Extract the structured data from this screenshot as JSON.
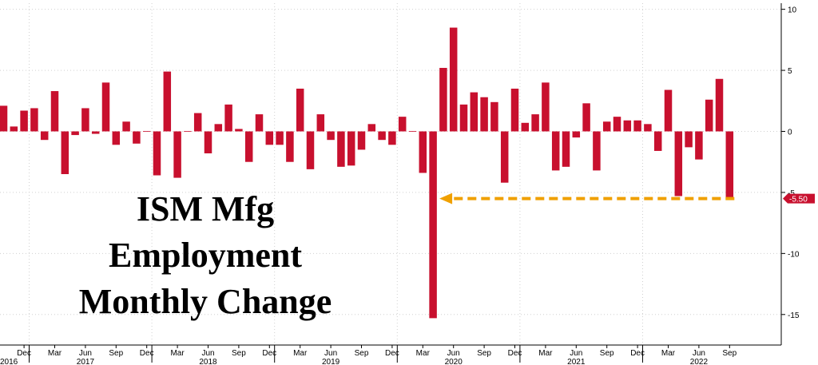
{
  "chart_data": {
    "type": "bar",
    "title_lines": [
      "ISM Mfg",
      "Employment",
      "Monthly Change"
    ],
    "xlabel": "",
    "ylabel": "",
    "ylim": [
      -17.5,
      10.5
    ],
    "y_ticks": [
      10,
      5,
      0,
      -5,
      -10,
      -15
    ],
    "grid": true,
    "x": [
      "2016-10",
      "2016-11",
      "2016-12",
      "2017-01",
      "2017-02",
      "2017-03",
      "2017-04",
      "2017-05",
      "2017-06",
      "2017-07",
      "2017-08",
      "2017-09",
      "2017-10",
      "2017-11",
      "2017-12",
      "2018-01",
      "2018-02",
      "2018-03",
      "2018-04",
      "2018-05",
      "2018-06",
      "2018-07",
      "2018-08",
      "2018-09",
      "2018-10",
      "2018-11",
      "2018-12",
      "2019-01",
      "2019-02",
      "2019-03",
      "2019-04",
      "2019-05",
      "2019-06",
      "2019-07",
      "2019-08",
      "2019-09",
      "2019-10",
      "2019-11",
      "2019-12",
      "2020-01",
      "2020-02",
      "2020-03",
      "2020-04",
      "2020-05",
      "2020-06",
      "2020-07",
      "2020-08",
      "2020-09",
      "2020-10",
      "2020-11",
      "2020-12",
      "2021-01",
      "2021-02",
      "2021-03",
      "2021-04",
      "2021-05",
      "2021-06",
      "2021-07",
      "2021-08",
      "2021-09",
      "2021-10",
      "2021-11",
      "2021-12",
      "2022-01",
      "2022-02",
      "2022-03",
      "2022-04",
      "2022-05",
      "2022-06",
      "2022-07",
      "2022-08",
      "2022-09"
    ],
    "series": [
      {
        "color": "#c8102e",
        "values": [
          2.1,
          0.4,
          1.7,
          1.9,
          -0.7,
          3.3,
          -3.5,
          -0.3,
          1.9,
          -0.2,
          4.0,
          -1.1,
          0.8,
          -1.0,
          0.0,
          -3.6,
          4.9,
          -3.8,
          0.0,
          1.5,
          -1.8,
          0.6,
          2.2,
          0.2,
          -2.5,
          1.4,
          -1.1,
          -1.1,
          -2.5,
          3.5,
          -3.1,
          1.4,
          -0.7,
          -2.9,
          -2.8,
          -1.5,
          0.6,
          -0.7,
          -1.1,
          1.2,
          0.0,
          -3.4,
          -15.3,
          5.2,
          8.5,
          2.2,
          3.2,
          2.8,
          2.4,
          -4.2,
          3.5,
          0.7,
          1.4,
          4.0,
          -3.2,
          -2.9,
          -0.5,
          2.3,
          -3.2,
          0.8,
          1.2,
          0.9,
          0.9,
          0.6,
          -1.6,
          3.4,
          -5.3,
          -1.3,
          -2.3,
          2.6,
          4.3,
          -5.5
        ]
      }
    ],
    "x_month_labels": [
      {
        "x": "2016-12",
        "label": "Dec"
      },
      {
        "x": "2017-03",
        "label": "Mar"
      },
      {
        "x": "2017-06",
        "label": "Jun"
      },
      {
        "x": "2017-09",
        "label": "Sep"
      },
      {
        "x": "2017-12",
        "label": "Dec"
      },
      {
        "x": "2018-03",
        "label": "Mar"
      },
      {
        "x": "2018-06",
        "label": "Jun"
      },
      {
        "x": "2018-09",
        "label": "Sep"
      },
      {
        "x": "2018-12",
        "label": "Dec"
      },
      {
        "x": "2019-03",
        "label": "Mar"
      },
      {
        "x": "2019-06",
        "label": "Jun"
      },
      {
        "x": "2019-09",
        "label": "Sep"
      },
      {
        "x": "2019-12",
        "label": "Dec"
      },
      {
        "x": "2020-03",
        "label": "Mar"
      },
      {
        "x": "2020-06",
        "label": "Jun"
      },
      {
        "x": "2020-09",
        "label": "Sep"
      },
      {
        "x": "2020-12",
        "label": "Dec"
      },
      {
        "x": "2021-03",
        "label": "Mar"
      },
      {
        "x": "2021-06",
        "label": "Jun"
      },
      {
        "x": "2021-09",
        "label": "Sep"
      },
      {
        "x": "2021-12",
        "label": "Dec"
      },
      {
        "x": "2022-03",
        "label": "Mar"
      },
      {
        "x": "2022-06",
        "label": "Jun"
      },
      {
        "x": "2022-09",
        "label": "Sep"
      }
    ],
    "x_year_labels": [
      {
        "x": "2016-10",
        "label": "2016"
      },
      {
        "x": "2017-06",
        "label": "2017"
      },
      {
        "x": "2018-06",
        "label": "2018"
      },
      {
        "x": "2019-06",
        "label": "2019"
      },
      {
        "x": "2020-06",
        "label": "2020"
      },
      {
        "x": "2021-06",
        "label": "2021"
      },
      {
        "x": "2022-06",
        "label": "2022"
      }
    ],
    "annotations": [
      {
        "type": "dashed-arrow",
        "color": "#f0a000",
        "from_x": "2022-09",
        "to_x": "2020-04",
        "y": -5.5
      },
      {
        "type": "last-value-label",
        "value": -5.5,
        "text": "-5.50",
        "color": "#c8102e"
      }
    ]
  }
}
